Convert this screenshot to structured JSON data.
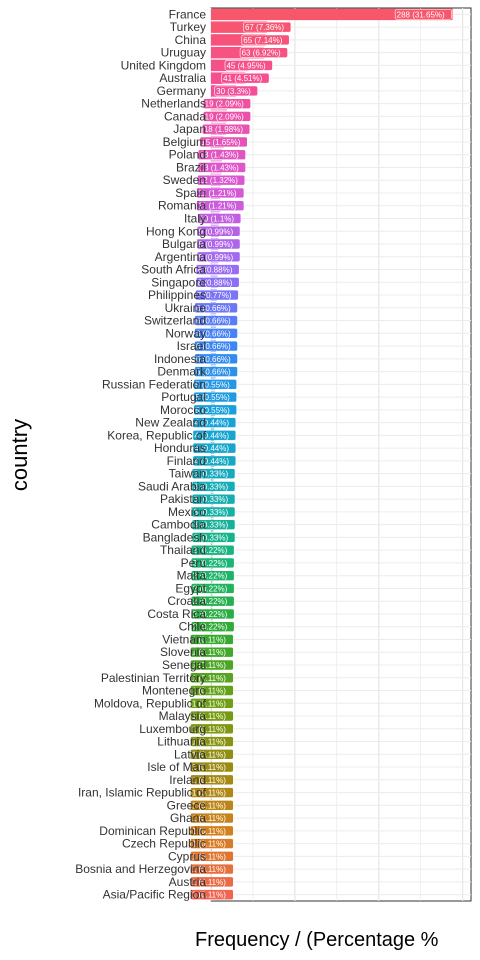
{
  "chart_data": {
    "type": "bar",
    "orientation": "horizontal",
    "xlabel": "Frequency / (Percentage %",
    "ylabel": "country",
    "xlim": [
      0,
      310
    ],
    "grid": true,
    "categories": [
      "France",
      "Turkey",
      "China",
      "Uruguay",
      "United Kingdom",
      "Australia",
      "Germany",
      "Netherlands",
      "Canada",
      "Japan",
      "Belgium",
      "Poland",
      "Brazil",
      "Sweden",
      "Spain",
      "Romania",
      "Italy",
      "Hong Kong",
      "Bulgaria",
      "Argentina",
      "South Africa",
      "Singapore",
      "Philippines",
      "Ukraine",
      "Switzerland",
      "Norway",
      "Israel",
      "Indonesia",
      "Denmark",
      "Russian Federation",
      "Portugal",
      "Morocco",
      "New Zealand",
      "Korea, Republic of",
      "Honduras",
      "Finland",
      "Taiwan",
      "Saudi Arabia",
      "Pakistan",
      "Mexico",
      "Cambodia",
      "Bangladesh",
      "Thailand",
      "Peru",
      "Malta",
      "Egypt",
      "Croatia",
      "Costa Rica",
      "Chile",
      "Vietnam",
      "Slovenia",
      "Senegal",
      "Palestinian Territory",
      "Montenegro",
      "Moldova, Republic of",
      "Malaysia",
      "Luxembourg",
      "Lithuania",
      "Latvia",
      "Isle of Man",
      "Ireland",
      "Iran, Islamic Republic of",
      "Greece",
      "Ghana",
      "Dominican Republic",
      "Czech Republic",
      "Cyprus",
      "Bosnia and Herzegovina",
      "Austria",
      "Asia/Pacific Region"
    ],
    "values": [
      288,
      67,
      65,
      63,
      45,
      41,
      30,
      19,
      19,
      18,
      15,
      13,
      13,
      12,
      11,
      11,
      10,
      9,
      9,
      9,
      8,
      8,
      7,
      6,
      6,
      6,
      6,
      6,
      6,
      5,
      5,
      5,
      4,
      4,
      4,
      4,
      3,
      3,
      3,
      3,
      3,
      3,
      2,
      2,
      2,
      2,
      2,
      2,
      2,
      1,
      1,
      1,
      1,
      1,
      1,
      1,
      1,
      1,
      1,
      1,
      1,
      1,
      1,
      1,
      1,
      1,
      1,
      1,
      1,
      1
    ],
    "data_labels": [
      "288 (31.65%)",
      "67 (7.36%)",
      "65 (7.14%)",
      "63 (6.92%)",
      "45 (4.95%)",
      "41 (4.51%)",
      "30 (3.3%)",
      "19 (2.09%)",
      "19 (2.09%)",
      "18 (1.98%)",
      "15 (1.65%)",
      "13 (1.43%)",
      "13 (1.43%)",
      "12 (1.32%)",
      "11 (1.21%)",
      "11 (1.21%)",
      "10 (1.1%)",
      "9 (0.99%)",
      "9 (0.99%)",
      "9 (0.99%)",
      "8 (0.88%)",
      "8 (0.88%)",
      "7 (0.77%)",
      "6 (0.66%)",
      "6 (0.66%)",
      "6 (0.66%)",
      "6 (0.66%)",
      "6 (0.66%)",
      "6 (0.66%)",
      "5 (0.55%)",
      "5 (0.55%)",
      "5 (0.55%)",
      "4 (0.44%)",
      "4 (0.44%)",
      "4 (0.44%)",
      "4 (0.44%)",
      "3 (0.33%)",
      "3 (0.33%)",
      "3 (0.33%)",
      "3 (0.33%)",
      "3 (0.33%)",
      "3 (0.33%)",
      "2 (0.22%)",
      "2 (0.22%)",
      "2 (0.22%)",
      "2 (0.22%)",
      "2 (0.22%)",
      "2 (0.22%)",
      "2 (0.22%)",
      "1 (0.11%)",
      "1 (0.11%)",
      "1 (0.11%)",
      "1 (0.11%)",
      "1 (0.11%)",
      "1 (0.11%)",
      "1 (0.11%)",
      "1 (0.11%)",
      "1 (0.11%)",
      "1 (0.11%)",
      "1 (0.11%)",
      "1 (0.11%)",
      "1 (0.11%)",
      "1 (0.11%)",
      "1 (0.11%)",
      "1 (0.11%)",
      "1 (0.11%)",
      "1 (0.11%)",
      "1 (0.11%)",
      "1 (0.11%)",
      "1 (0.11%)"
    ],
    "palette": "rainbow (red - pink - purple - blue - teal - green - olive - orange - red)"
  }
}
